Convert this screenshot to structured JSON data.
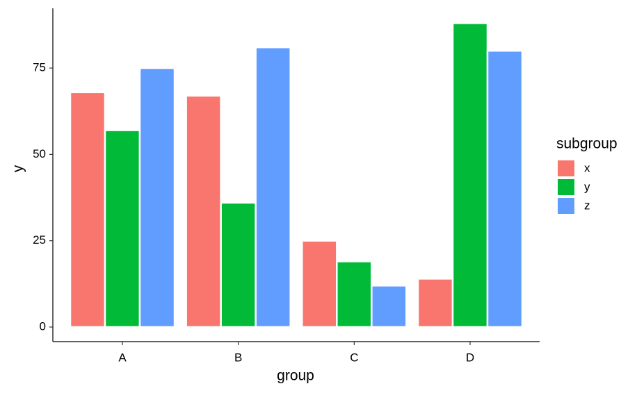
{
  "chart_data": {
    "type": "bar",
    "categories": [
      "A",
      "B",
      "C",
      "D"
    ],
    "series": [
      {
        "name": "x",
        "color": "#f8766d",
        "values": [
          68,
          67,
          25,
          14
        ]
      },
      {
        "name": "y",
        "color": "#00ba38",
        "values": [
          57,
          36,
          19,
          88
        ]
      },
      {
        "name": "z",
        "color": "#619cff",
        "values": [
          75,
          81,
          12,
          80
        ]
      }
    ],
    "xlabel": "group",
    "ylabel": "y",
    "legend_title": "subgroup",
    "ylim": [
      -4.22,
      92.3
    ],
    "yticks": [
      0,
      25,
      50,
      75
    ],
    "grid": false,
    "legend": "right"
  }
}
